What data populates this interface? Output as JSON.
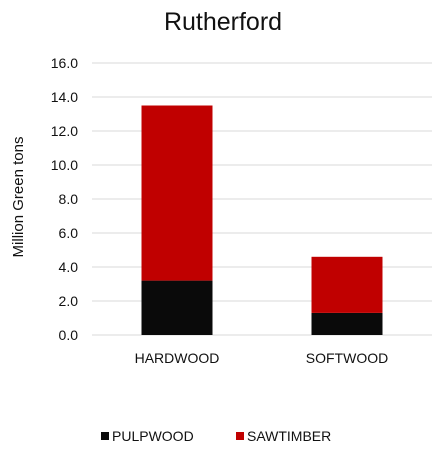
{
  "chart_data": {
    "type": "bar",
    "stacked": true,
    "title": "Rutherford",
    "xlabel": "",
    "ylabel": "Million Green tons",
    "categories": [
      "HARDWOOD",
      "SOFTWOOD"
    ],
    "series": [
      {
        "name": "PULPWOOD",
        "values": [
          3.2,
          1.3
        ],
        "color": "#0a0a0a"
      },
      {
        "name": "SAWTIMBER",
        "values": [
          10.3,
          3.3
        ],
        "color": "#c00000"
      }
    ],
    "ylim": [
      0,
      16
    ],
    "yticks": [
      "0.0",
      "2.0",
      "4.0",
      "6.0",
      "8.0",
      "10.0",
      "12.0",
      "14.0",
      "16.0"
    ],
    "grid": true,
    "legend_position": "bottom"
  }
}
